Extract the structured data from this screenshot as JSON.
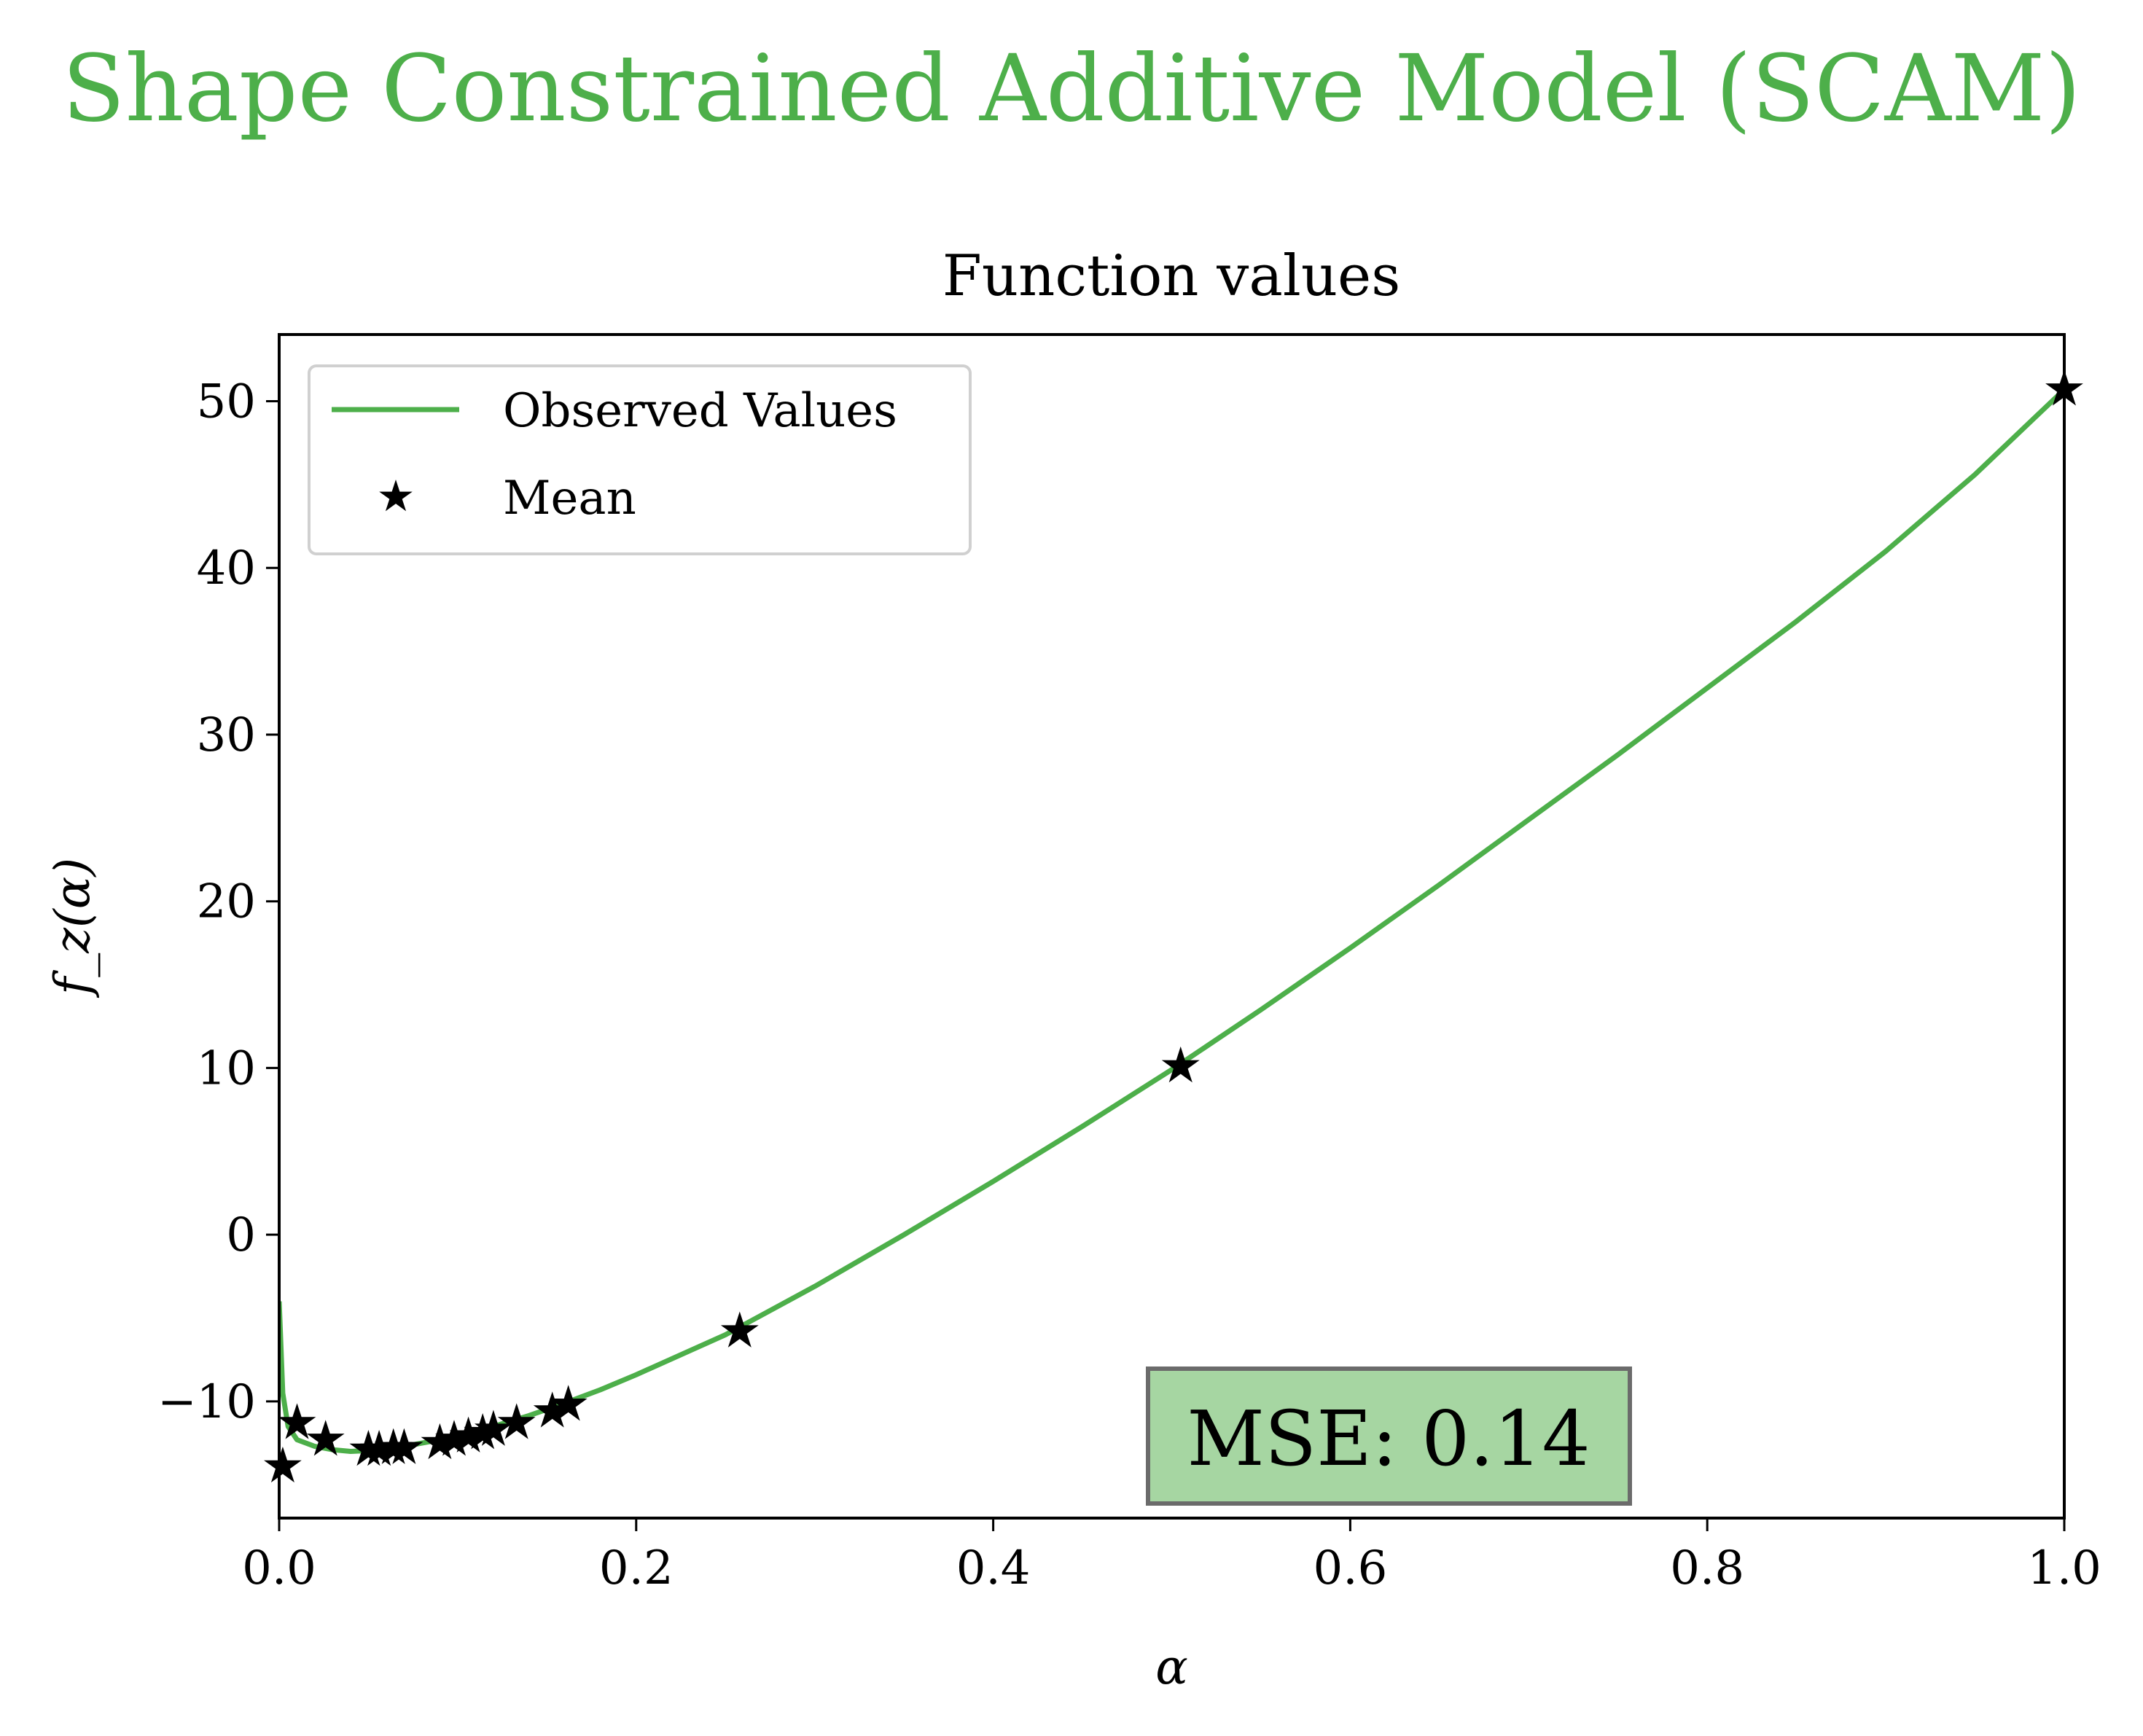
{
  "figure": {
    "suptitle": "Shape Constrained Additive Model (SCAM)",
    "suptitle_color": "#4daf4a"
  },
  "chart_data": {
    "type": "line",
    "title": "Function values",
    "xlabel": "α",
    "ylabel": "f_z(α)",
    "xlim": [
      0.0,
      1.0
    ],
    "ylim": [
      -17,
      54
    ],
    "x_ticks": [
      0.0,
      0.2,
      0.4,
      0.6,
      0.8,
      1.0
    ],
    "x_tick_labels": [
      "0.0",
      "0.2",
      "0.4",
      "0.6",
      "0.8",
      "1.0"
    ],
    "y_ticks": [
      -10,
      0,
      10,
      20,
      30,
      40,
      50
    ],
    "y_tick_labels": [
      "−10",
      "0",
      "10",
      "20",
      "30",
      "40",
      "50"
    ],
    "grid": false,
    "legend_position": "top-left",
    "series": [
      {
        "name": "Observed Values",
        "kind": "line",
        "color": "#4daf4a",
        "x": [
          0.0,
          0.002,
          0.005,
          0.01,
          0.02,
          0.03,
          0.04,
          0.05,
          0.06,
          0.07,
          0.08,
          0.09,
          0.1,
          0.12,
          0.14,
          0.16,
          0.18,
          0.2,
          0.25,
          0.3,
          0.35,
          0.4,
          0.45,
          0.5,
          0.55,
          0.6,
          0.65,
          0.7,
          0.75,
          0.8,
          0.85,
          0.9,
          0.95,
          1.0
        ],
        "y": [
          -4.0,
          -9.5,
          -11.5,
          -12.3,
          -12.7,
          -12.9,
          -13.0,
          -12.95,
          -12.85,
          -12.7,
          -12.5,
          -12.3,
          -12.05,
          -11.5,
          -10.85,
          -10.1,
          -9.3,
          -8.4,
          -6.0,
          -3.1,
          0.0,
          3.2,
          6.5,
          9.9,
          13.5,
          17.2,
          21.0,
          24.9,
          28.8,
          32.8,
          36.8,
          41.0,
          45.6,
          50.7
        ]
      },
      {
        "name": "Mean",
        "kind": "scatter",
        "marker": "star",
        "color": "#000000",
        "x": [
          0.002,
          0.01,
          0.026,
          0.05,
          0.056,
          0.064,
          0.07,
          0.09,
          0.098,
          0.106,
          0.114,
          0.12,
          0.133,
          0.153,
          0.162,
          0.258,
          0.505,
          1.0
        ],
        "y": [
          -13.9,
          -11.3,
          -12.3,
          -12.9,
          -12.9,
          -12.8,
          -12.8,
          -12.5,
          -12.3,
          -12.1,
          -11.9,
          -11.7,
          -11.3,
          -10.6,
          -10.2,
          -5.8,
          10.1,
          50.7
        ]
      }
    ],
    "annotation": {
      "text": "MSE: 0.14",
      "position": "bottom-right",
      "box_color": "#a6d6a2",
      "border_color": "#6b6b6b"
    }
  }
}
